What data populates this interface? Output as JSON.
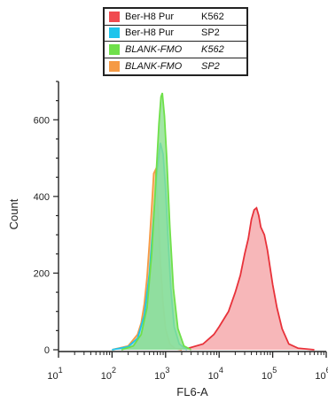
{
  "legend": [
    {
      "name": "Ber-H8  Pur",
      "cell": "K562",
      "color": "#f04a4f",
      "italic": false
    },
    {
      "name": "Ber-H8  Pur",
      "cell": "SP2",
      "color": "#1ec4ec",
      "italic": false
    },
    {
      "name": "BLANK-FMO",
      "cell": "K562",
      "color": "#6fe04a",
      "italic": true
    },
    {
      "name": "BLANK-FMO",
      "cell": "SP2",
      "color": "#f59a45",
      "italic": true
    }
  ],
  "chart_data": {
    "type": "area",
    "xlabel": "FL6-A",
    "ylabel": "Count",
    "xscale": "log",
    "xlim": [
      10,
      1000000
    ],
    "ylim": [
      0,
      700
    ],
    "yticks": [
      0,
      200,
      400,
      600
    ],
    "xticks": [
      {
        "base": "10",
        "exp": "1",
        "value": 10
      },
      {
        "base": "10",
        "exp": "2",
        "value": 100
      },
      {
        "base": "10",
        "exp": "3",
        "value": 1000
      },
      {
        "base": "10",
        "exp": "4",
        "value": 10000
      },
      {
        "base": "10",
        "exp": "5",
        "value": 100000
      },
      {
        "base": "10",
        "exp": "6",
        "value": 1000000
      }
    ],
    "series": [
      {
        "name": "Ber-H8 Pur K562",
        "fill": "#f5a5a8",
        "stroke": "#e8323a",
        "points": [
          [
            1000,
            2
          ],
          [
            2500,
            3
          ],
          [
            5000,
            15
          ],
          [
            8000,
            40
          ],
          [
            10000,
            60
          ],
          [
            15000,
            100
          ],
          [
            20000,
            150
          ],
          [
            25000,
            195
          ],
          [
            30000,
            250
          ],
          [
            35000,
            290
          ],
          [
            40000,
            340
          ],
          [
            45000,
            365
          ],
          [
            50000,
            370
          ],
          [
            55000,
            350
          ],
          [
            60000,
            320
          ],
          [
            70000,
            300
          ],
          [
            80000,
            260
          ],
          [
            100000,
            170
          ],
          [
            120000,
            110
          ],
          [
            150000,
            55
          ],
          [
            200000,
            15
          ],
          [
            300000,
            4
          ],
          [
            600000,
            0
          ]
        ]
      },
      {
        "name": "BLANK-FMO SP2",
        "fill": "#f7c28a",
        "stroke": "#f59a45",
        "points": [
          [
            100,
            0
          ],
          [
            200,
            10
          ],
          [
            300,
            40
          ],
          [
            350,
            70
          ],
          [
            400,
            120
          ],
          [
            450,
            190
          ],
          [
            500,
            280
          ],
          [
            550,
            370
          ],
          [
            600,
            460
          ],
          [
            650,
            470
          ],
          [
            700,
            400
          ],
          [
            750,
            320
          ],
          [
            800,
            230
          ],
          [
            900,
            120
          ],
          [
            1000,
            55
          ],
          [
            1200,
            15
          ],
          [
            1500,
            3
          ],
          [
            2000,
            0
          ]
        ]
      },
      {
        "name": "Ber-H8 Pur SP2",
        "fill": "#8fd8ee",
        "stroke": "#1ec4ec",
        "points": [
          [
            100,
            0
          ],
          [
            200,
            8
          ],
          [
            300,
            30
          ],
          [
            400,
            90
          ],
          [
            500,
            200
          ],
          [
            600,
            350
          ],
          [
            700,
            470
          ],
          [
            800,
            540
          ],
          [
            900,
            510
          ],
          [
            1000,
            420
          ],
          [
            1100,
            300
          ],
          [
            1250,
            160
          ],
          [
            1450,
            60
          ],
          [
            1800,
            15
          ],
          [
            2500,
            0
          ]
        ]
      },
      {
        "name": "BLANK-FMO K562",
        "fill": "#8be08f",
        "stroke": "#6fe04a",
        "points": [
          [
            150,
            0
          ],
          [
            250,
            10
          ],
          [
            350,
            40
          ],
          [
            450,
            110
          ],
          [
            550,
            250
          ],
          [
            650,
            430
          ],
          [
            750,
            590
          ],
          [
            820,
            660
          ],
          [
            870,
            670
          ],
          [
            950,
            610
          ],
          [
            1050,
            500
          ],
          [
            1200,
            320
          ],
          [
            1400,
            160
          ],
          [
            1700,
            55
          ],
          [
            2200,
            10
          ],
          [
            3000,
            0
          ]
        ]
      }
    ]
  }
}
